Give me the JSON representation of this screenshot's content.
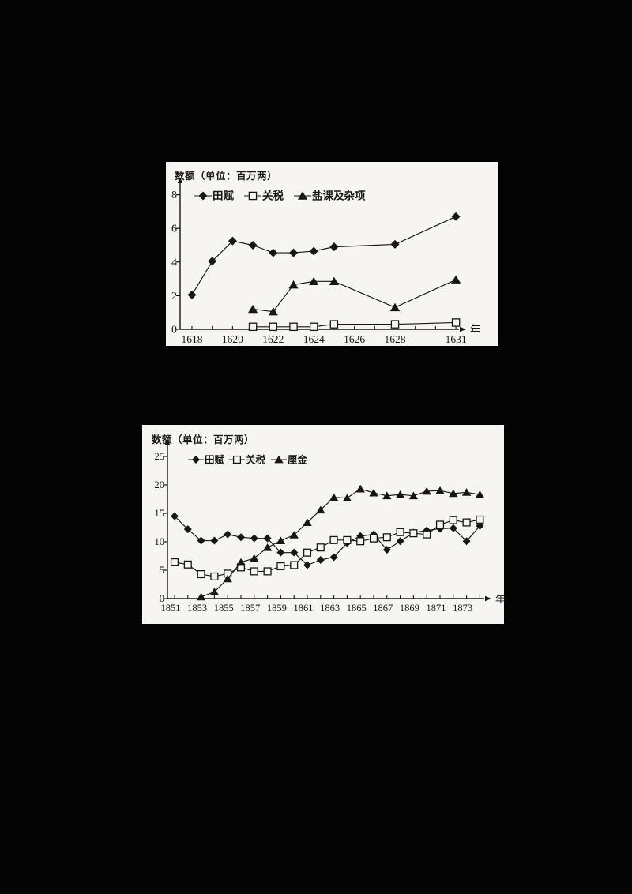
{
  "page": {
    "background_color": "#040404",
    "panel_color": "#f6f5f1",
    "ink_color": "#161616"
  },
  "chart_data": [
    {
      "id": "ming-revenue",
      "type": "line",
      "title": "数额（单位：百万两）",
      "xlabel": "年",
      "ylabel": "",
      "ylim": [
        0,
        8
      ],
      "yticks": [
        0,
        2,
        4,
        6,
        8
      ],
      "xrange_years": [
        1618,
        1631
      ],
      "xticks_labeled": [
        1618,
        1620,
        1622,
        1624,
        1626,
        1628,
        1631
      ],
      "grid": false,
      "legend_position": "top-inside",
      "series": [
        {
          "name": "田赋",
          "marker": "diamond-filled",
          "x": [
            1618,
            1619,
            1620,
            1621,
            1622,
            1623,
            1624,
            1625,
            1628,
            1631
          ],
          "y": [
            2.05,
            4.05,
            5.25,
            5.0,
            4.55,
            4.55,
            4.65,
            4.9,
            5.05,
            6.7
          ]
        },
        {
          "name": "关税",
          "marker": "square-open",
          "x": [
            1621,
            1622,
            1623,
            1624,
            1625,
            1628,
            1631
          ],
          "y": [
            0.15,
            0.15,
            0.15,
            0.15,
            0.3,
            0.3,
            0.4
          ]
        },
        {
          "name": "盐课及杂项",
          "marker": "triangle-filled",
          "x": [
            1621,
            1622,
            1623,
            1624,
            1625,
            1628,
            1631
          ],
          "y": [
            1.2,
            1.05,
            2.65,
            2.85,
            2.85,
            1.3,
            2.95
          ]
        }
      ]
    },
    {
      "id": "qing-revenue",
      "type": "line",
      "title": "数额（单位：百万两）",
      "xlabel": "年",
      "ylabel": "",
      "ylim": [
        0,
        25
      ],
      "yticks": [
        0,
        5,
        10,
        15,
        20,
        25
      ],
      "xrange_years": [
        1851,
        1874
      ],
      "xticks_labeled": [
        1851,
        1853,
        1855,
        1857,
        1859,
        1861,
        1863,
        1865,
        1867,
        1869,
        1871,
        1873
      ],
      "grid": false,
      "legend_position": "top-inside",
      "series": [
        {
          "name": "田赋",
          "marker": "diamond-filled",
          "x": [
            1851,
            1852,
            1853,
            1854,
            1855,
            1856,
            1857,
            1858,
            1859,
            1860,
            1861,
            1862,
            1863,
            1864,
            1865,
            1866,
            1867,
            1868,
            1869,
            1870,
            1871,
            1872,
            1873,
            1874
          ],
          "y": [
            14.5,
            12.2,
            10.2,
            10.2,
            11.3,
            10.8,
            10.6,
            10.6,
            8.1,
            8.1,
            5.9,
            6.8,
            7.3,
            9.8,
            11.0,
            11.3,
            8.6,
            10.1,
            11.6,
            12.0,
            12.3,
            12.4,
            10.1,
            12.8
          ]
        },
        {
          "name": "关税",
          "marker": "square-open",
          "x": [
            1851,
            1852,
            1853,
            1854,
            1855,
            1856,
            1857,
            1858,
            1859,
            1860,
            1861,
            1862,
            1863,
            1864,
            1865,
            1866,
            1867,
            1868,
            1869,
            1870,
            1871,
            1872,
            1873,
            1874
          ],
          "y": [
            6.4,
            6.0,
            4.3,
            3.9,
            4.4,
            5.5,
            4.8,
            4.8,
            5.7,
            5.9,
            8.1,
            9.0,
            10.3,
            10.3,
            10.1,
            10.6,
            10.8,
            11.7,
            11.5,
            11.3,
            13.0,
            13.8,
            13.4,
            13.9
          ]
        },
        {
          "name": "厘金",
          "marker": "triangle-filled",
          "x": [
            1853,
            1854,
            1855,
            1856,
            1857,
            1858,
            1859,
            1860,
            1861,
            1862,
            1863,
            1864,
            1865,
            1866,
            1867,
            1868,
            1869,
            1870,
            1871,
            1872,
            1873,
            1874
          ],
          "y": [
            0.3,
            1.2,
            3.5,
            6.4,
            7.1,
            9.0,
            10.2,
            11.2,
            13.4,
            15.6,
            17.8,
            17.7,
            19.3,
            18.6,
            18.1,
            18.3,
            18.1,
            18.9,
            19.0,
            18.5,
            18.7,
            18.3
          ]
        }
      ]
    }
  ]
}
